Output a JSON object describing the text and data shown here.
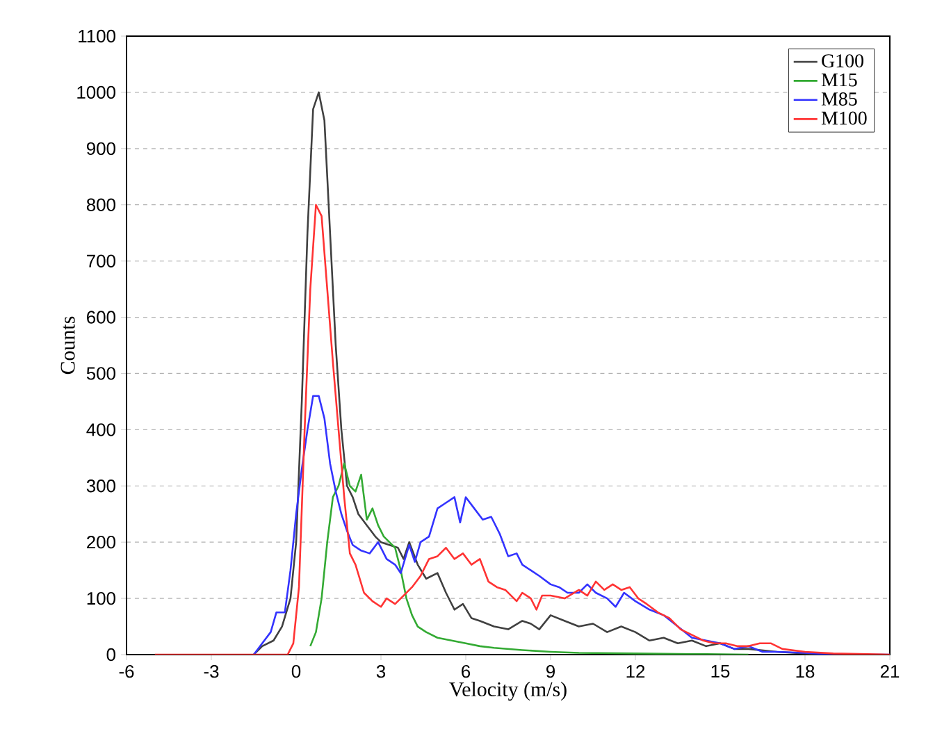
{
  "chart_data": {
    "type": "line",
    "xlabel": "Velocity (m/s)",
    "ylabel": "Counts",
    "xlim": [
      -6,
      21
    ],
    "xticks": [
      -6,
      -3,
      0,
      3,
      6,
      9,
      12,
      15,
      18,
      21
    ],
    "ylim": [
      0,
      1100
    ],
    "yticks": [
      0,
      100,
      200,
      300,
      400,
      500,
      600,
      700,
      800,
      900,
      1000,
      1100
    ],
    "grid": "y",
    "legend": "top right",
    "marker": "none",
    "line_style": "solid",
    "series": [
      {
        "name": "G100",
        "color": "#404040",
        "x": [
          -1.5,
          -1.2,
          -0.8,
          -0.5,
          -0.2,
          0,
          0.2,
          0.4,
          0.6,
          0.8,
          1.0,
          1.2,
          1.4,
          1.6,
          1.8,
          2.0,
          2.2,
          2.5,
          2.8,
          3.0,
          3.3,
          3.6,
          3.8,
          4.0,
          4.3,
          4.6,
          5.0,
          5.3,
          5.6,
          5.9,
          6.2,
          6.5,
          7,
          7.5,
          8,
          8.3,
          8.6,
          9,
          9.5,
          10,
          10.5,
          11,
          11.5,
          12,
          12.5,
          13,
          13.5,
          14,
          14.5,
          15,
          15.5,
          16,
          17,
          18,
          19
        ],
        "values": [
          0,
          15,
          25,
          50,
          100,
          200,
          450,
          750,
          970,
          1000,
          950,
          750,
          550,
          400,
          300,
          280,
          250,
          230,
          210,
          200,
          195,
          190,
          170,
          200,
          160,
          135,
          145,
          110,
          80,
          90,
          65,
          60,
          50,
          45,
          60,
          55,
          45,
          70,
          60,
          50,
          55,
          40,
          50,
          40,
          25,
          30,
          20,
          25,
          15,
          20,
          10,
          10,
          5,
          2,
          0
        ]
      },
      {
        "name": "M15",
        "color": "#33aa33",
        "x": [
          0.5,
          0.7,
          0.9,
          1.1,
          1.3,
          1.5,
          1.7,
          1.9,
          2.1,
          2.3,
          2.5,
          2.7,
          2.9,
          3.1,
          3.3,
          3.5,
          3.7,
          3.9,
          4.1,
          4.3,
          4.6,
          5.0,
          5.5,
          6.0,
          6.5,
          7.0,
          8.0,
          9.0,
          10,
          12,
          14,
          16
        ],
        "values": [
          15,
          40,
          100,
          200,
          280,
          300,
          340,
          300,
          290,
          320,
          240,
          260,
          230,
          210,
          200,
          190,
          150,
          100,
          70,
          50,
          40,
          30,
          25,
          20,
          15,
          12,
          8,
          5,
          3,
          2,
          1,
          0
        ]
      },
      {
        "name": "M85",
        "color": "#3333ff",
        "x": [
          -1.5,
          -1.2,
          -0.9,
          -0.7,
          -0.4,
          -0.2,
          0,
          0.2,
          0.4,
          0.6,
          0.8,
          1.0,
          1.2,
          1.4,
          1.6,
          1.8,
          2.0,
          2.3,
          2.6,
          2.9,
          3.2,
          3.5,
          3.7,
          4.0,
          4.2,
          4.4,
          4.7,
          5.0,
          5.3,
          5.6,
          5.8,
          6.0,
          6.3,
          6.6,
          6.9,
          7.2,
          7.5,
          7.8,
          8.0,
          8.3,
          8.6,
          9.0,
          9.3,
          9.6,
          10,
          10.3,
          10.6,
          11,
          11.3,
          11.6,
          12,
          12.5,
          13,
          13.5,
          14,
          14.5,
          15,
          15.5,
          16,
          16.5,
          17,
          18,
          19,
          21
        ],
        "values": [
          0,
          20,
          40,
          75,
          75,
          150,
          250,
          330,
          400,
          460,
          460,
          420,
          340,
          290,
          250,
          220,
          195,
          185,
          180,
          200,
          170,
          160,
          145,
          195,
          165,
          200,
          210,
          260,
          270,
          280,
          235,
          280,
          260,
          240,
          245,
          215,
          175,
          180,
          160,
          150,
          140,
          125,
          120,
          110,
          110,
          125,
          110,
          100,
          85,
          110,
          95,
          80,
          70,
          50,
          30,
          25,
          20,
          10,
          15,
          5,
          5,
          3,
          0,
          0
        ]
      },
      {
        "name": "M100",
        "color": "#ff3333",
        "x": [
          -5,
          -2,
          -0.3,
          -0.1,
          0.1,
          0.3,
          0.5,
          0.7,
          0.9,
          1.1,
          1.3,
          1.5,
          1.7,
          1.9,
          2.1,
          2.4,
          2.7,
          3.0,
          3.2,
          3.5,
          3.8,
          4.1,
          4.4,
          4.7,
          5.0,
          5.3,
          5.6,
          5.9,
          6.2,
          6.5,
          6.8,
          7.1,
          7.4,
          7.8,
          8.0,
          8.3,
          8.5,
          8.7,
          9.0,
          9.5,
          10,
          10.3,
          10.6,
          10.9,
          11.2,
          11.5,
          11.8,
          12.1,
          12.4,
          12.8,
          13.2,
          13.6,
          14,
          14.4,
          14.8,
          15.2,
          15.6,
          16,
          16.4,
          16.8,
          17.2,
          18,
          19,
          21
        ],
        "values": [
          0,
          0,
          0,
          20,
          120,
          400,
          650,
          800,
          780,
          650,
          520,
          400,
          280,
          180,
          160,
          110,
          95,
          85,
          100,
          90,
          105,
          120,
          140,
          170,
          175,
          190,
          170,
          180,
          160,
          170,
          130,
          120,
          115,
          95,
          110,
          100,
          80,
          105,
          105,
          100,
          115,
          105,
          130,
          115,
          125,
          115,
          120,
          100,
          90,
          75,
          65,
          45,
          35,
          25,
          20,
          20,
          15,
          15,
          20,
          20,
          10,
          5,
          2,
          0
        ]
      }
    ]
  }
}
